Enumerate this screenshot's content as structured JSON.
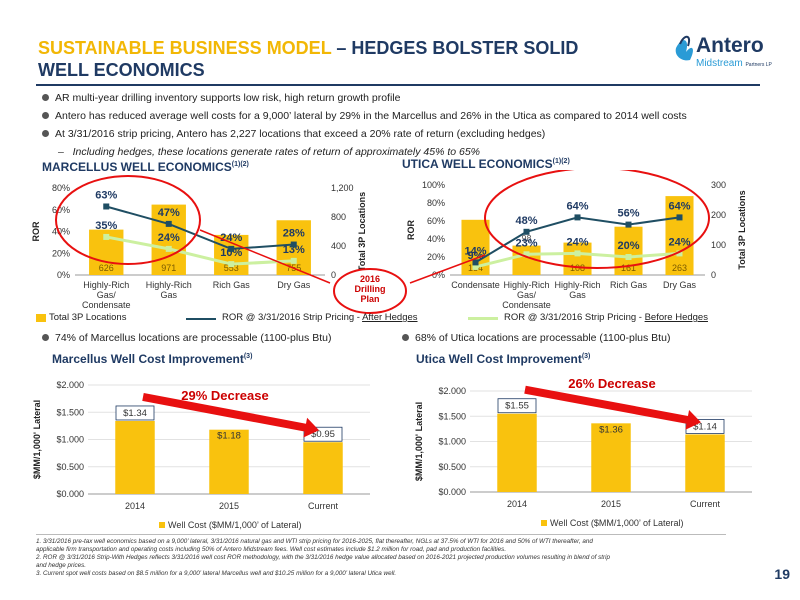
{
  "title": {
    "accent": "SUSTAINABLE BUSINESS MODEL",
    "rest": " – HEDGES BOLSTER SOLID",
    "line2": "WELL ECONOMICS"
  },
  "logo": {
    "word": "Antero",
    "sub": "Midstream",
    "partners": "Partners LP"
  },
  "bullets": [
    "AR multi-year drilling inventory supports low risk, high return growth profile",
    "Antero has reduced average well costs for a 9,000’ lateral by 29% in the Marcellus and 26% in the Utica as compared to 2014 well costs",
    "At 3/31/2016 strip pricing, Antero has 2,227 locations that exceed a 20% rate of return (excluding hedges)"
  ],
  "subbullet": "Including hedges, these locations generate rates of return of approximately 45% to 65%",
  "callout": {
    "line1": "2016",
    "line2": "Drilling",
    "line3": "Plan"
  },
  "legend_top": {
    "bars": "Total 3P Locations",
    "after_prefix": "ROR @ 3/31/2016 Strip Pricing - ",
    "after_suffix": "After Hedges",
    "before_prefix": "ROR @ 3/31/2016 Strip Pricing - ",
    "before_suffix": "Before Hedges"
  },
  "processable": {
    "marcellus": "74% of Marcellus locations are processable (1100-plus Btu)",
    "utica": "68% of Utica locations are processable (1100-plus Btu)"
  },
  "colors": {
    "bar": "#f9c20e",
    "after": "#1f4e63",
    "before": "#ccf0a0",
    "navy": "#1f3a63",
    "arrow": "#e81010"
  },
  "chart_data": [
    {
      "type": "bar",
      "title": "MARCELLUS WELL ECONOMICS",
      "title_sup": "(1)(2)",
      "categories": [
        "Highly-Rich Gas/ Condensate",
        "Highly-Rich Gas",
        "Rich Gas",
        "Dry Gas"
      ],
      "category_lines": [
        [
          "Highly-Rich",
          "Gas/",
          "Condensate"
        ],
        [
          "Highly-Rich",
          "Gas"
        ],
        [
          "Rich Gas"
        ],
        [
          "Dry Gas"
        ]
      ],
      "ylabel": "ROR",
      "y2label": "Total 3P Locations",
      "yticks": [
        "0%",
        "20%",
        "40%",
        "60%",
        "80%"
      ],
      "y2ticks": [
        "0",
        "400",
        "800",
        "1,200"
      ],
      "ylim": [
        0,
        80
      ],
      "y2lim": [
        0,
        1200
      ],
      "series": [
        {
          "name": "Total 3P Locations",
          "values": [
            626,
            971,
            553,
            755
          ],
          "labels": [
            "626",
            "971",
            "553",
            "755"
          ]
        },
        {
          "name": "ROR @ 3/31/2016 Strip Pricing - After Hedges",
          "values": [
            63,
            47,
            24,
            28
          ],
          "labels": [
            "63%",
            "47%",
            "24%",
            "28%"
          ]
        },
        {
          "name": "ROR @ 3/31/2016 Strip Pricing - Before Hedges",
          "values": [
            35,
            24,
            10,
            13
          ],
          "labels": [
            "35%",
            "24%",
            "10%",
            "13%"
          ]
        }
      ]
    },
    {
      "type": "bar",
      "title": "UTICA WELL ECONOMICS",
      "title_sup": "(1)(2)",
      "categories": [
        "Condensate",
        "Highly-Rich Gas/ Condensate",
        "Highly-Rich Gas",
        "Rich Gas",
        "Dry Gas"
      ],
      "category_lines": [
        [
          "Condensate"
        ],
        [
          "Highly-Rich",
          "Gas/",
          "Condensate"
        ],
        [
          "Highly-Rich",
          "Gas"
        ],
        [
          "Rich Gas"
        ],
        [
          "Dry Gas"
        ]
      ],
      "ylabel": "ROR",
      "y2label": "Total 3P Locations",
      "yticks": [
        "0%",
        "20%",
        "40%",
        "60%",
        "80%",
        "100%"
      ],
      "y2ticks": [
        "0",
        "100",
        "200",
        "300"
      ],
      "ylim": [
        0,
        100
      ],
      "y2lim": [
        0,
        300
      ],
      "series": [
        {
          "name": "Total 3P Locations",
          "values": [
            184,
            98,
            108,
            161,
            263
          ],
          "labels": [
            "184",
            "98",
            "108",
            "161",
            "263"
          ]
        },
        {
          "name": "ROR @ 3/31/2016 Strip Pricing - After Hedges",
          "values": [
            14,
            48,
            64,
            56,
            64
          ],
          "labels": [
            "14%",
            "48%",
            "64%",
            "56%",
            "64%"
          ]
        },
        {
          "name": "ROR @ 3/31/2016 Strip Pricing - Before Hedges",
          "values": [
            9,
            23,
            24,
            20,
            24
          ],
          "labels": [
            "9%",
            "23%",
            "24%",
            "20%",
            "24%"
          ]
        }
      ]
    },
    {
      "type": "bar",
      "title": "Marcellus Well Cost Improvement",
      "title_sup": "(3)",
      "categories": [
        "2014",
        "2015",
        "Current"
      ],
      "ylabel": "$MM/1,000' Lateral",
      "yticks": [
        "$0.000",
        "$0.500",
        "$1.000",
        "$1.500",
        "$2.000"
      ],
      "ylim": [
        0,
        2
      ],
      "series": [
        {
          "name": "Well Cost ($MM/1,000’ of Lateral)",
          "values": [
            1.34,
            1.18,
            0.95
          ],
          "labels": [
            "$1.34",
            "$1.18",
            "$0.95"
          ]
        }
      ],
      "annotation": "29% Decrease"
    },
    {
      "type": "bar",
      "title": "Utica Well Cost Improvement",
      "title_sup": "(3)",
      "categories": [
        "2014",
        "2015",
        "Current"
      ],
      "ylabel": "$MM/1,000' Lateral",
      "yticks": [
        "$0.000",
        "$0.500",
        "$1.000",
        "$1.500",
        "$2.000"
      ],
      "ylim": [
        0,
        2
      ],
      "series": [
        {
          "name": "Well Cost ($MM/1,000’ of Lateral)",
          "values": [
            1.55,
            1.36,
            1.14
          ],
          "labels": [
            "$1.55",
            "$1.36",
            "$1.14"
          ]
        }
      ],
      "annotation": "26% Decrease"
    }
  ],
  "footnotes": [
    "1.  3/31/2016 pre-tax well economics based on a 9,000’ lateral, 3/31/2016 natural gas and WTI strip pricing for 2016-2025, flat thereafter, NGLs at 37.5% of WTI for 2016 and 50% of WTI thereafter, and",
    "     applicable firm transportation and operating costs including 50% of Antero Midstream fees.  Well cost estimates include $1.2 million for road, pad and production facilities.",
    "2.  ROR @ 3/31/2016 Strip-With Hedges reflects 3/31/2016 well cost ROR methodology, with the 3/31/2016 hedge value allocated based on 2016-2021 projected production volumes resulting in blend of strip",
    "     and hedge prices.",
    "3.  Current spot well costs based on $8.5 million for a 9,000’ lateral Marcellus well and $10.25 million for a 9,000’ lateral Utica well."
  ],
  "page_number": "19"
}
